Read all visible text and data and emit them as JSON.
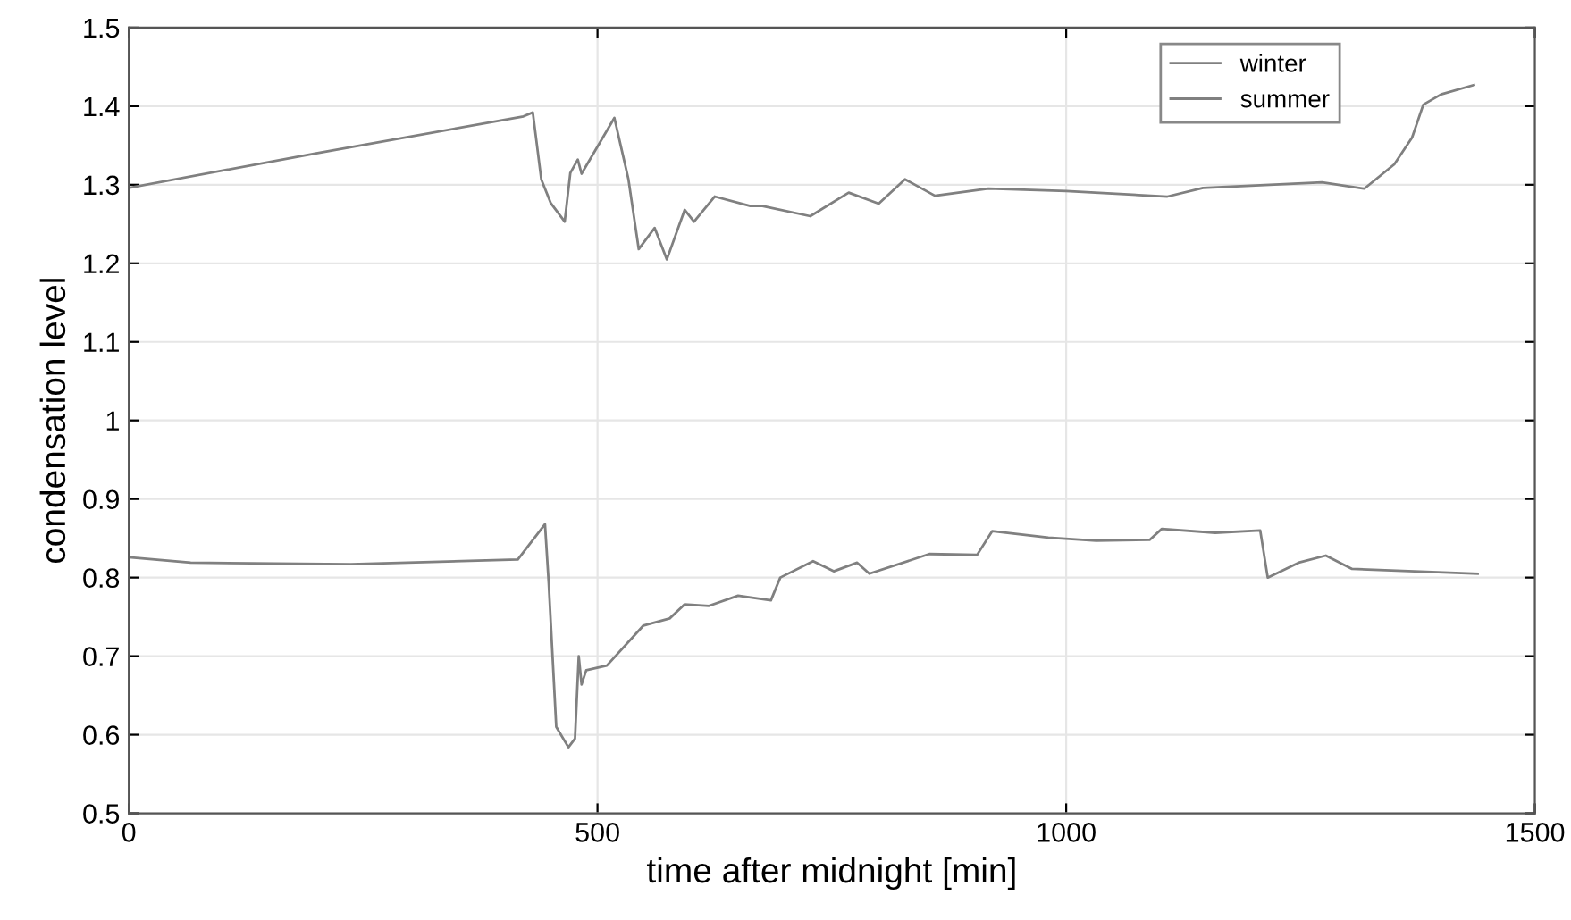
{
  "chart_data": {
    "type": "line",
    "xlabel": "time after midnight [min]",
    "ylabel": "condensation level",
    "xlim": [
      0,
      1500
    ],
    "xticks": [
      0,
      500,
      1000,
      1500
    ],
    "ylim": [
      0.5,
      1.5
    ],
    "yticks": [
      0.5,
      0.6,
      0.7,
      0.8,
      0.9,
      1,
      1.1,
      1.2,
      1.3,
      1.4,
      1.5
    ],
    "grid": true,
    "legend": "top right",
    "marker": "none",
    "line_style": "solid",
    "series": [
      {
        "name": "winter",
        "color": "#808080",
        "x": [
          0,
          200,
          421,
          431,
          440,
          450,
          465,
          471,
          479,
          483,
          518,
          533,
          544,
          561,
          574,
          593,
          603,
          625,
          663,
          676,
          727,
          768,
          800,
          828,
          860,
          917,
          1000,
          1108,
          1146,
          1273,
          1318,
          1350,
          1369,
          1381,
          1400,
          1435
        ],
        "values": [
          1.296,
          1.34,
          1.387,
          1.392,
          1.307,
          1.277,
          1.253,
          1.315,
          1.332,
          1.314,
          1.385,
          1.307,
          1.218,
          1.245,
          1.205,
          1.268,
          1.253,
          1.285,
          1.273,
          1.273,
          1.26,
          1.29,
          1.276,
          1.307,
          1.286,
          1.295,
          1.292,
          1.285,
          1.296,
          1.303,
          1.295,
          1.326,
          1.36,
          1.402,
          1.415,
          1.427
        ]
      },
      {
        "name": "summer",
        "color": "#808080",
        "x": [
          0,
          66,
          237,
          415,
          444,
          448,
          456,
          469,
          476,
          480,
          483,
          488,
          510,
          549,
          577,
          593,
          619,
          650,
          685,
          695,
          730,
          752,
          777,
          790,
          854,
          905,
          921,
          981,
          1032,
          1089,
          1102,
          1159,
          1207,
          1215,
          1248,
          1277,
          1305,
          1439
        ],
        "values": [
          0.826,
          0.819,
          0.817,
          0.823,
          0.868,
          0.792,
          0.61,
          0.584,
          0.595,
          0.7,
          0.664,
          0.682,
          0.688,
          0.739,
          0.748,
          0.766,
          0.764,
          0.777,
          0.771,
          0.8,
          0.821,
          0.808,
          0.819,
          0.805,
          0.83,
          0.829,
          0.859,
          0.851,
          0.847,
          0.848,
          0.862,
          0.857,
          0.86,
          0.8,
          0.819,
          0.828,
          0.811,
          0.805
        ]
      }
    ]
  }
}
